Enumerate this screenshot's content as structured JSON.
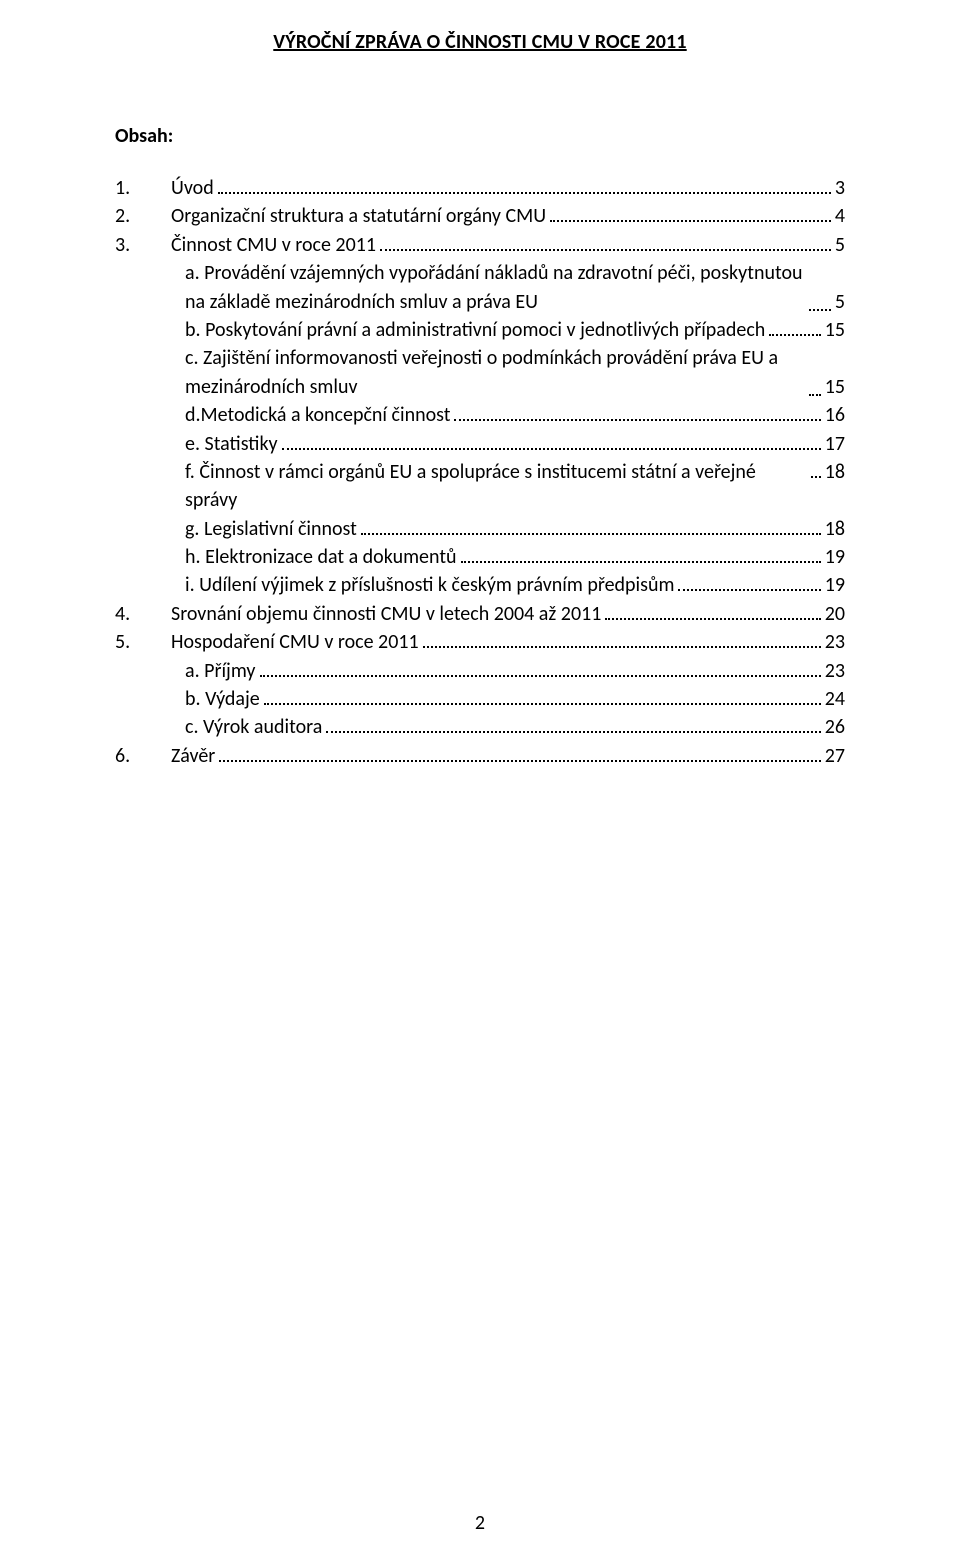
{
  "title": "VÝROČNÍ ZPRÁVA O ČINNOSTI CMU V ROCE 2011",
  "obsah_label": "Obsah:",
  "page_number": "2",
  "colors": {
    "text": "#000000",
    "background": "#ffffff",
    "dot_leader": "#000000"
  },
  "typography": {
    "font_family": "Calibri",
    "title_fontsize_pt": 15,
    "body_fontsize_pt": 15,
    "title_weight": "bold",
    "title_underline": true
  },
  "toc": {
    "top": [
      {
        "num": "1.",
        "label": "Úvod",
        "page": "3"
      },
      {
        "num": "2.",
        "label": "Organizační struktura a statutární orgány CMU",
        "page": "4"
      },
      {
        "num": "3.",
        "label": "Činnost CMU v roce 2011",
        "page": "5"
      }
    ],
    "sub3": [
      {
        "label": "a. Provádění vzájemných vypořádání nákladů na zdravotní péči, poskytnutou na základě mezinárodních smluv a práva EU",
        "page": "5"
      },
      {
        "label": "b. Poskytování právní a administrativní pomoci v jednotlivých případech",
        "page": "15"
      },
      {
        "label": "c. Zajištění informovanosti veřejnosti o podmínkách provádění práva EU a mezinárodních smluv",
        "page": "15"
      },
      {
        "label": "d.Metodická a koncepční činnost",
        "page": "16"
      },
      {
        "label": "e. Statistiky",
        "page": "17"
      },
      {
        "label": "f. Činnost v rámci orgánů EU a spolupráce s institucemi státní a veřejné správy",
        "page": "18"
      },
      {
        "label": "g. Legislativní činnost",
        "page": "18"
      },
      {
        "label": "h. Elektronizace dat a dokumentů",
        "page": "19"
      },
      {
        "label": "i. Udílení výjimek z příslušnosti k českým právním předpisům",
        "page": "19"
      }
    ],
    "top2": [
      {
        "num": "4.",
        "label": "Srovnání objemu činnosti CMU v letech 2004 až 2011",
        "page": "20"
      },
      {
        "num": "5.",
        "label": "Hospodaření CMU v roce 2011",
        "page": "23"
      }
    ],
    "sub5": [
      {
        "label": "a. Příjmy",
        "page": "23"
      },
      {
        "label": "b. Výdaje",
        "page": "24"
      },
      {
        "label": "c. Výrok auditora",
        "page": "26"
      }
    ],
    "top3": [
      {
        "num": "6.",
        "label": "Závěr",
        "page": "27"
      }
    ]
  }
}
